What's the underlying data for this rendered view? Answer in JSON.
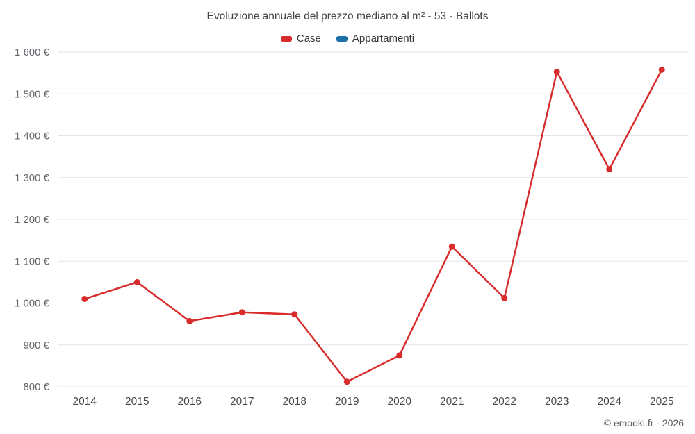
{
  "header": {
    "title": "Evoluzione annuale del prezzo mediano al m² - 53 - Ballots"
  },
  "legend": {
    "items": [
      {
        "label": "Case",
        "color": "#d82c2c"
      },
      {
        "label": "Appartamenti",
        "color": "#1c6fa8"
      }
    ]
  },
  "footer": {
    "attribution": "© emooki.fr - 2026"
  },
  "chart_data": {
    "type": "line",
    "title": "Evoluzione annuale del prezzo mediano al m² - 53 - Ballots",
    "categories": [
      "2014",
      "2015",
      "2016",
      "2017",
      "2018",
      "2019",
      "2020",
      "2021",
      "2022",
      "2023",
      "2024",
      "2025"
    ],
    "series": [
      {
        "name": "Case",
        "color": "#d82c2c",
        "values": [
          1010,
          1050,
          957,
          978,
          973,
          812,
          875,
          1135,
          1012,
          1553,
          1320,
          1558
        ]
      },
      {
        "name": "Appartamenti",
        "color": "#1c6fa8",
        "values": []
      }
    ],
    "xlabel": "",
    "ylabel": "",
    "ylim": [
      800,
      1600
    ],
    "ytick_step": 100,
    "ytick_format": "{value} €",
    "grid": true,
    "legend_position": "top"
  }
}
